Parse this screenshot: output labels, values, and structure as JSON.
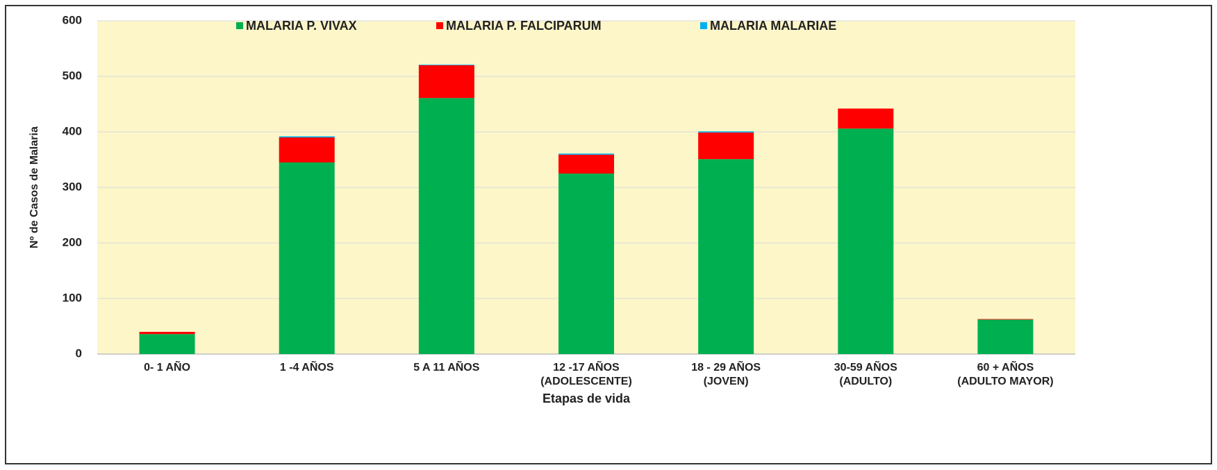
{
  "chart_data": {
    "type": "bar",
    "stacked": true,
    "x_label": "Etapas de vida",
    "y_label": "Nº de Casos de Malaria",
    "categories": [
      "0- 1 AÑO",
      "1 -4  AÑOS",
      "5 A 11 AÑOS",
      "12 -17 AÑOS\n(ADOLESCENTE)",
      "18 - 29 AÑOS\n(JOVEN)",
      "30-59 AÑOS\n(ADULTO)",
      "60 + AÑOS\n(ADULTO MAYOR)"
    ],
    "series": [
      {
        "name": "MALARIA P. VIVAX",
        "color": "#00b050",
        "values": [
          36,
          345,
          461,
          325,
          351,
          406,
          62
        ]
      },
      {
        "name": "MALARIA P. FALCIPARUM",
        "color": "#ff0000",
        "values": [
          4,
          45,
          59,
          34,
          48,
          36,
          1
        ]
      },
      {
        "name": "MALARIA MALARIAE",
        "color": "#00b0f0",
        "values": [
          0,
          2,
          1,
          2,
          2,
          0,
          0
        ]
      }
    ],
    "ylim": [
      0,
      600
    ],
    "yticks": [
      0,
      100,
      200,
      300,
      400,
      500,
      600
    ],
    "grid": true,
    "legend": "top",
    "plot_background": "#fdf6c9"
  }
}
